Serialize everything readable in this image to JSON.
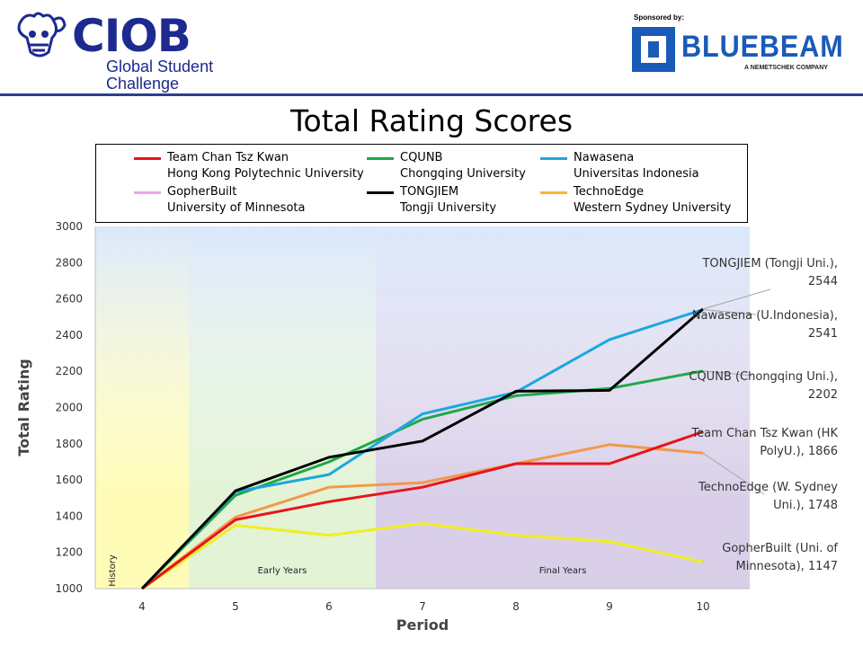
{
  "header": {
    "ciob_word": "CIOB",
    "ciob_sub1": "Global Student",
    "ciob_sub2": "Challenge",
    "sponsor_text": "Sponsored by:",
    "bluebeam_word": "BLUEBEAM",
    "bluebeam_sub": "A NEMETSCHEK COMPANY",
    "brand_color": "#1d2a8f",
    "bluebeam_color": "#1a5ab8"
  },
  "chart_data": {
    "type": "line",
    "title": "Total Rating Scores",
    "xlabel": "Period",
    "ylabel": "Total Rating",
    "x": [
      4,
      5,
      6,
      7,
      8,
      9,
      10
    ],
    "xlim": [
      3.5,
      10.5
    ],
    "ylim": [
      1000,
      3000
    ],
    "yticks": [
      1000,
      1200,
      1400,
      1600,
      1800,
      2000,
      2200,
      2400,
      2600,
      2800,
      3000
    ],
    "grid": false,
    "legend_position": "top",
    "phases": [
      {
        "label": "History",
        "from": 3.5,
        "to": 4.5,
        "color": "#fffcb8",
        "vertical": true
      },
      {
        "label": "Early Years",
        "from": 4.5,
        "to": 6.5,
        "color": "#e3f3d6",
        "vertical": false
      },
      {
        "label": "Final Years",
        "from": 6.5,
        "to": 10.5,
        "color": "#d9cfe8",
        "vertical": false
      }
    ],
    "series": [
      {
        "name": "Team Chan Tsz Kwan",
        "university": "Hong Kong Polytechnic University",
        "color": "#e8141b",
        "values": [
          1000,
          1380,
          1480,
          1560,
          1690,
          1690,
          1866
        ],
        "annotation": [
          "Team Chan Tsz Kwan (HK",
          "PolyU.), 1866"
        ]
      },
      {
        "name": "CQUNB",
        "university": "Chongqing University",
        "color": "#1fa84a",
        "values": [
          1000,
          1515,
          1700,
          1935,
          2065,
          2105,
          2202
        ],
        "annotation": [
          "CQUNB (Chongqing Uni.),",
          "2202"
        ]
      },
      {
        "name": "Nawasena",
        "university": "Universitas Indonesia",
        "color": "#1aa7e0",
        "values": [
          1000,
          1535,
          1630,
          1965,
          2085,
          2375,
          2541
        ],
        "annotation": [
          "Nawasena (U.Indonesia),",
          "2541"
        ]
      },
      {
        "name": "GopherBuilt",
        "university": "University of Minnesota",
        "color": "#f0ee23",
        "legend_color": "#e9a6ea",
        "values": [
          1000,
          1350,
          1295,
          1360,
          1295,
          1260,
          1147
        ],
        "annotation": [
          "GopherBuilt (Uni. of",
          "Minnesota), 1147"
        ]
      },
      {
        "name": "TONGJIEM",
        "university": "Tongji University",
        "color": "#000000",
        "values": [
          1000,
          1540,
          1725,
          1815,
          2090,
          2095,
          2544
        ],
        "annotation": [
          "TONGJIEM (Tongji Uni.),",
          "2544"
        ]
      },
      {
        "name": "TechnoEdge",
        "university": "Western Sydney University",
        "color": "#f2994a",
        "legend_color": "#f7b731",
        "values": [
          1000,
          1395,
          1560,
          1585,
          1690,
          1795,
          1748
        ],
        "annotation": [
          "TechnoEdge (W. Sydney",
          "Uni.), 1748"
        ]
      }
    ]
  }
}
